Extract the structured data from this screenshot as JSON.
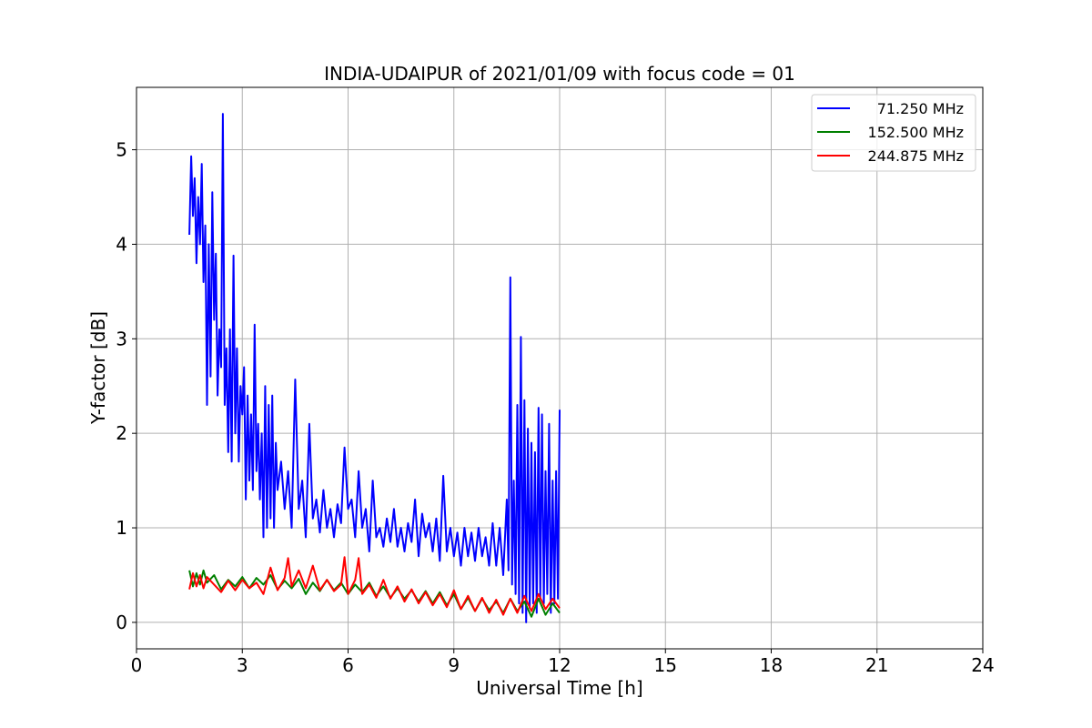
{
  "chart_data": {
    "type": "line",
    "title": "INDIA-UDAIPUR of 2021/01/09 with focus code = 01",
    "xlabel": "Universal Time [h]",
    "ylabel": "Y-factor [dB]",
    "xlim": [
      0,
      24
    ],
    "ylim": [
      -0.28,
      5.66
    ],
    "xticks": [
      0,
      3,
      6,
      9,
      12,
      15,
      18,
      21,
      24
    ],
    "yticks": [
      0,
      1,
      2,
      3,
      4,
      5
    ],
    "grid": true,
    "legend_position": "top-right",
    "series": [
      {
        "name": "71.250 MHz",
        "color": "#0000ff",
        "x": [
          1.5,
          1.55,
          1.6,
          1.65,
          1.7,
          1.75,
          1.8,
          1.85,
          1.9,
          1.95,
          2.0,
          2.05,
          2.1,
          2.15,
          2.2,
          2.25,
          2.3,
          2.35,
          2.4,
          2.45,
          2.5,
          2.55,
          2.6,
          2.65,
          2.7,
          2.75,
          2.8,
          2.85,
          2.9,
          2.95,
          3.0,
          3.05,
          3.1,
          3.15,
          3.2,
          3.25,
          3.3,
          3.35,
          3.4,
          3.45,
          3.5,
          3.55,
          3.6,
          3.65,
          3.7,
          3.75,
          3.8,
          3.85,
          3.9,
          3.95,
          4.0,
          4.1,
          4.2,
          4.3,
          4.4,
          4.5,
          4.6,
          4.7,
          4.8,
          4.9,
          5.0,
          5.1,
          5.2,
          5.3,
          5.4,
          5.5,
          5.6,
          5.7,
          5.8,
          5.9,
          6.0,
          6.1,
          6.2,
          6.3,
          6.4,
          6.5,
          6.6,
          6.7,
          6.8,
          6.9,
          7.0,
          7.1,
          7.2,
          7.3,
          7.4,
          7.5,
          7.6,
          7.7,
          7.8,
          7.9,
          8.0,
          8.1,
          8.2,
          8.3,
          8.4,
          8.5,
          8.6,
          8.7,
          8.8,
          8.9,
          9.0,
          9.1,
          9.2,
          9.3,
          9.4,
          9.5,
          9.6,
          9.7,
          9.8,
          9.9,
          10.0,
          10.1,
          10.2,
          10.3,
          10.4,
          10.5,
          10.55,
          10.6,
          10.65,
          10.7,
          10.75,
          10.8,
          10.85,
          10.9,
          10.95,
          11.0,
          11.05,
          11.1,
          11.15,
          11.2,
          11.25,
          11.3,
          11.35,
          11.4,
          11.45,
          11.5,
          11.55,
          11.6,
          11.65,
          11.7,
          11.75,
          11.8,
          11.85,
          11.9,
          11.95,
          12.0
        ],
        "y": [
          4.1,
          4.93,
          4.3,
          4.7,
          3.8,
          4.5,
          4.0,
          4.85,
          3.6,
          4.2,
          2.3,
          4.0,
          2.6,
          4.55,
          3.2,
          3.9,
          2.4,
          3.1,
          2.7,
          5.38,
          2.3,
          2.9,
          1.8,
          3.1,
          1.7,
          3.88,
          2.0,
          2.9,
          1.7,
          2.5,
          2.2,
          2.7,
          1.3,
          2.4,
          1.5,
          2.2,
          1.4,
          3.15,
          1.6,
          2.1,
          1.3,
          2.0,
          0.9,
          2.5,
          1.0,
          2.3,
          1.1,
          2.4,
          1.0,
          1.9,
          1.4,
          1.7,
          1.2,
          1.6,
          1.0,
          2.57,
          1.2,
          1.5,
          0.9,
          2.1,
          1.1,
          1.3,
          0.95,
          1.4,
          1.0,
          1.2,
          0.9,
          1.25,
          1.05,
          1.85,
          1.2,
          1.3,
          0.9,
          1.6,
          1.0,
          1.2,
          0.75,
          1.5,
          0.9,
          1.0,
          0.8,
          1.1,
          0.85,
          1.2,
          0.8,
          1.0,
          0.75,
          1.05,
          0.85,
          1.3,
          0.7,
          1.15,
          0.9,
          1.05,
          0.75,
          1.1,
          0.65,
          1.55,
          0.75,
          1.0,
          0.7,
          0.95,
          0.6,
          1.0,
          0.7,
          0.95,
          0.65,
          1.0,
          0.7,
          0.9,
          0.6,
          1.05,
          0.6,
          1.0,
          0.5,
          1.3,
          0.55,
          3.65,
          0.4,
          1.5,
          0.3,
          2.3,
          0.2,
          3.02,
          0.1,
          2.35,
          0.0,
          2.05,
          0.15,
          1.9,
          0.2,
          1.8,
          0.1,
          2.27,
          0.25,
          2.2,
          0.2,
          1.6,
          0.3,
          2.1,
          0.1,
          1.5,
          0.2,
          1.6,
          0.25,
          2.25
        ]
      },
      {
        "name": "152.500 MHz",
        "color": "#008000",
        "x": [
          1.5,
          1.6,
          1.7,
          1.8,
          1.9,
          2.0,
          2.2,
          2.4,
          2.6,
          2.8,
          3.0,
          3.2,
          3.4,
          3.6,
          3.8,
          4.0,
          4.2,
          4.4,
          4.6,
          4.8,
          5.0,
          5.2,
          5.4,
          5.6,
          5.8,
          6.0,
          6.2,
          6.4,
          6.6,
          6.8,
          7.0,
          7.2,
          7.4,
          7.6,
          7.8,
          8.0,
          8.2,
          8.4,
          8.6,
          8.8,
          9.0,
          9.2,
          9.4,
          9.6,
          9.8,
          10.0,
          10.2,
          10.4,
          10.6,
          10.8,
          11.0,
          11.2,
          11.4,
          11.6,
          11.8,
          12.0
        ],
        "y": [
          0.55,
          0.38,
          0.52,
          0.4,
          0.55,
          0.42,
          0.5,
          0.35,
          0.45,
          0.38,
          0.48,
          0.36,
          0.47,
          0.4,
          0.5,
          0.35,
          0.44,
          0.36,
          0.46,
          0.3,
          0.42,
          0.33,
          0.45,
          0.34,
          0.42,
          0.3,
          0.4,
          0.32,
          0.42,
          0.28,
          0.38,
          0.26,
          0.36,
          0.25,
          0.34,
          0.22,
          0.33,
          0.2,
          0.32,
          0.18,
          0.3,
          0.14,
          0.26,
          0.12,
          0.25,
          0.13,
          0.22,
          0.1,
          0.25,
          0.12,
          0.22,
          0.06,
          0.25,
          0.08,
          0.2,
          0.1
        ]
      },
      {
        "name": "244.875 MHz",
        "color": "#ff0000",
        "x": [
          1.5,
          1.6,
          1.7,
          1.8,
          1.9,
          2.0,
          2.2,
          2.4,
          2.6,
          2.8,
          3.0,
          3.2,
          3.4,
          3.6,
          3.8,
          4.0,
          4.2,
          4.3,
          4.4,
          4.6,
          4.8,
          5.0,
          5.2,
          5.4,
          5.6,
          5.8,
          5.9,
          6.0,
          6.2,
          6.3,
          6.4,
          6.6,
          6.8,
          7.0,
          7.2,
          7.4,
          7.6,
          7.8,
          8.0,
          8.2,
          8.4,
          8.6,
          8.8,
          9.0,
          9.2,
          9.4,
          9.6,
          9.8,
          10.0,
          10.2,
          10.4,
          10.6,
          10.8,
          11.0,
          11.2,
          11.4,
          11.6,
          11.8,
          12.0
        ],
        "y": [
          0.35,
          0.52,
          0.38,
          0.5,
          0.36,
          0.48,
          0.4,
          0.32,
          0.44,
          0.34,
          0.45,
          0.36,
          0.42,
          0.3,
          0.58,
          0.34,
          0.47,
          0.68,
          0.38,
          0.55,
          0.36,
          0.6,
          0.34,
          0.45,
          0.33,
          0.4,
          0.69,
          0.3,
          0.45,
          0.68,
          0.3,
          0.4,
          0.26,
          0.45,
          0.25,
          0.38,
          0.22,
          0.35,
          0.2,
          0.32,
          0.18,
          0.3,
          0.16,
          0.34,
          0.14,
          0.28,
          0.12,
          0.26,
          0.1,
          0.24,
          0.08,
          0.25,
          0.1,
          0.28,
          0.12,
          0.3,
          0.14,
          0.25,
          0.15
        ]
      }
    ]
  }
}
